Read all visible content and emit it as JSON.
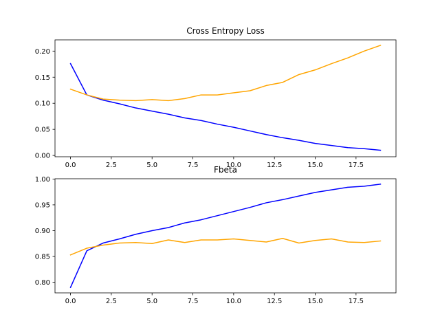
{
  "chart_data": [
    {
      "type": "line",
      "title": "Cross Entropy Loss",
      "xlabel": "",
      "ylabel": "",
      "x": [
        0,
        1,
        2,
        3,
        4,
        5,
        6,
        7,
        8,
        9,
        10,
        11,
        12,
        13,
        14,
        15,
        16,
        17,
        18,
        19
      ],
      "xlim": [
        -0.95,
        19.95
      ],
      "ylim": [
        -0.0025,
        0.2215
      ],
      "xticks": [
        0.0,
        2.5,
        5.0,
        7.5,
        10.0,
        12.5,
        15.0,
        17.5
      ],
      "xtick_labels": [
        "0.0",
        "2.5",
        "5.0",
        "7.5",
        "10.0",
        "12.5",
        "15.0",
        "17.5"
      ],
      "yticks": [
        0.0,
        0.05,
        0.1,
        0.15,
        0.2
      ],
      "ytick_labels": [
        "0.00",
        "0.05",
        "0.10",
        "0.15",
        "0.20"
      ],
      "grid": false,
      "series": [
        {
          "color": "#0000ff",
          "values": [
            0.176,
            0.116,
            0.106,
            0.099,
            0.091,
            0.085,
            0.079,
            0.072,
            0.067,
            0.06,
            0.054,
            0.047,
            0.04,
            0.034,
            0.029,
            0.023,
            0.019,
            0.015,
            0.013,
            0.01
          ]
        },
        {
          "color": "#ffa500",
          "values": [
            0.127,
            0.116,
            0.108,
            0.106,
            0.105,
            0.107,
            0.105,
            0.109,
            0.116,
            0.116,
            0.12,
            0.124,
            0.134,
            0.14,
            0.155,
            0.164,
            0.176,
            0.187,
            0.2,
            0.211
          ]
        }
      ]
    },
    {
      "type": "line",
      "title": "Fbeta",
      "xlabel": "",
      "ylabel": "",
      "x": [
        0,
        1,
        2,
        3,
        4,
        5,
        6,
        7,
        8,
        9,
        10,
        11,
        12,
        13,
        14,
        15,
        16,
        17,
        18,
        19
      ],
      "xlim": [
        -0.95,
        19.95
      ],
      "ylim": [
        0.7795,
        1.0005
      ],
      "xticks": [
        0.0,
        2.5,
        5.0,
        7.5,
        10.0,
        12.5,
        15.0,
        17.5
      ],
      "xtick_labels": [
        "0.0",
        "2.5",
        "5.0",
        "7.5",
        "10.0",
        "12.5",
        "15.0",
        "17.5"
      ],
      "yticks": [
        0.8,
        0.85,
        0.9,
        0.95,
        1.0
      ],
      "ytick_labels": [
        "0.80",
        "0.85",
        "0.90",
        "0.95",
        "1.00"
      ],
      "grid": false,
      "series": [
        {
          "color": "#0000ff",
          "values": [
            0.79,
            0.861,
            0.876,
            0.884,
            0.893,
            0.9,
            0.906,
            0.915,
            0.921,
            0.929,
            0.937,
            0.945,
            0.954,
            0.96,
            0.967,
            0.974,
            0.979,
            0.984,
            0.986,
            0.99
          ]
        },
        {
          "color": "#ffa500",
          "values": [
            0.853,
            0.866,
            0.872,
            0.876,
            0.877,
            0.875,
            0.882,
            0.877,
            0.882,
            0.882,
            0.884,
            0.881,
            0.878,
            0.885,
            0.876,
            0.881,
            0.884,
            0.878,
            0.877,
            0.88
          ]
        }
      ]
    }
  ]
}
